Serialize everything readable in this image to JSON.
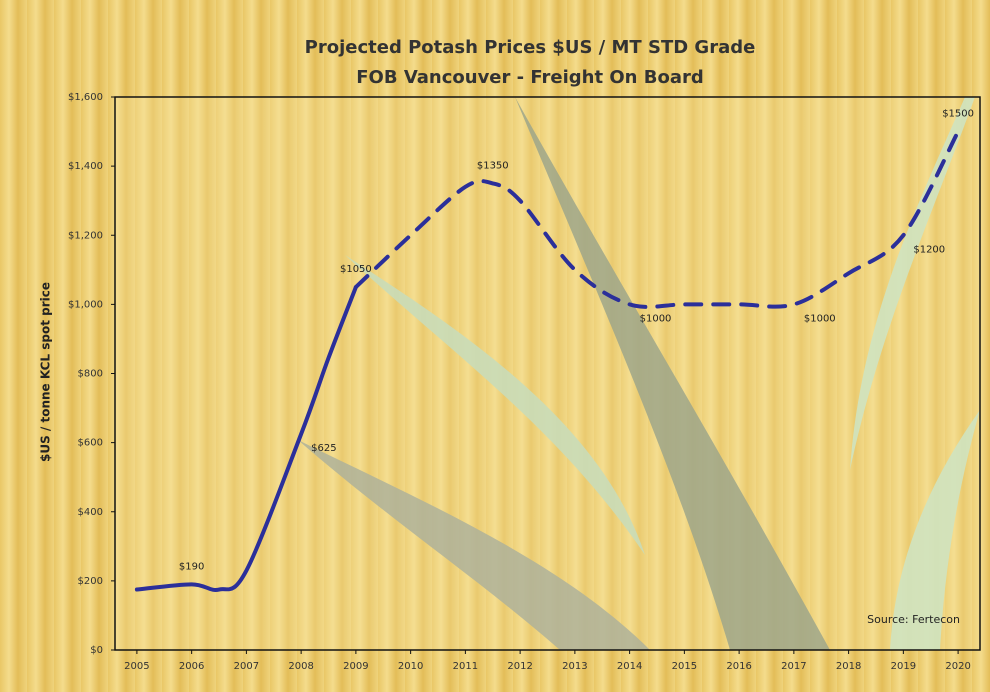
{
  "chart_data": {
    "type": "line",
    "title": "Projected Potash Prices  $US / MT STD Grade",
    "subtitle": "FOB Vancouver - Freight On Board",
    "y_label": "$US / tonne KCL spot price",
    "annotation": "Source: Fertecon",
    "xlim": [
      2004.6,
      2020.4
    ],
    "xticks": [
      2005,
      2006,
      2007,
      2008,
      2009,
      2010,
      2011,
      2012,
      2013,
      2014,
      2015,
      2016,
      2017,
      2018,
      2019,
      2020
    ],
    "ylim": [
      0,
      1600
    ],
    "yticks": [
      {
        "value": 0,
        "label": "$0"
      },
      {
        "value": 200,
        "label": "$200"
      },
      {
        "value": 400,
        "label": "$400"
      },
      {
        "value": 600,
        "label": "$600"
      },
      {
        "value": 800,
        "label": "$800"
      },
      {
        "value": 1000,
        "label": "$1,000"
      },
      {
        "value": 1200,
        "label": "$1,200"
      },
      {
        "value": 1400,
        "label": "$1,400"
      },
      {
        "value": 1600,
        "label": "$1,600"
      }
    ],
    "series": [
      {
        "color": "#2b2f9a",
        "dashed": false,
        "x": [
          2005,
          2006,
          2006.5,
          2007,
          2008,
          2008.5,
          2009
        ],
        "values": [
          175,
          190,
          175,
          230,
          625,
          845,
          1050
        ],
        "value_labels": [
          null,
          "$190",
          null,
          null,
          "$625",
          null,
          "$1050"
        ]
      },
      {
        "color": "#2b2f9a",
        "dashed": true,
        "x": [
          2009,
          2010,
          2011,
          2011.5,
          2012,
          2013,
          2014,
          2015,
          2016,
          2017,
          2018,
          2019,
          2020
        ],
        "values": [
          1050,
          1200,
          1340,
          1350,
          1300,
          1100,
          1000,
          1000,
          1000,
          1000,
          1090,
          1200,
          1500
        ],
        "value_labels": [
          null,
          null,
          null,
          "$1350",
          null,
          null,
          "$1000",
          null,
          null,
          "$1000",
          null,
          "$1200",
          "$1500"
        ]
      }
    ]
  }
}
